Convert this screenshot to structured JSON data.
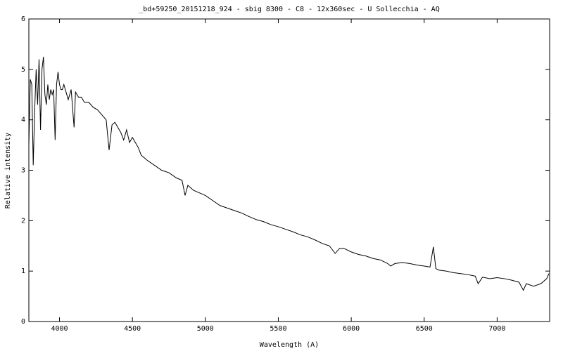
{
  "chart_data": {
    "type": "line",
    "title": "_bd+59250_20151218_924 - sbig 8300 - C8 - 12x360sec - U Sollecchia - AQ",
    "x_label": "Wavelength (A)",
    "y_label": "Relative intensity",
    "color": "#000000",
    "xlim": [
      3790,
      7360
    ],
    "xticks": [
      4000,
      4500,
      5000,
      5500,
      6000,
      6500,
      7000
    ],
    "ylim": [
      0,
      6
    ],
    "yticks": [
      0,
      1,
      2,
      3,
      4,
      5,
      6
    ],
    "x": [
      3790,
      3800,
      3810,
      3820,
      3830,
      3840,
      3850,
      3860,
      3870,
      3880,
      3890,
      3900,
      3910,
      3920,
      3930,
      3940,
      3950,
      3960,
      3970,
      3980,
      3990,
      4000,
      4010,
      4020,
      4030,
      4040,
      4060,
      4080,
      4100,
      4110,
      4130,
      4150,
      4170,
      4200,
      4230,
      4260,
      4290,
      4320,
      4340,
      4360,
      4380,
      4400,
      4420,
      4440,
      4460,
      4480,
      4500,
      4520,
      4540,
      4560,
      4600,
      4650,
      4700,
      4750,
      4800,
      4840,
      4861,
      4880,
      4920,
      4960,
      5000,
      5050,
      5100,
      5150,
      5200,
      5250,
      5300,
      5350,
      5400,
      5450,
      5500,
      5550,
      5600,
      5650,
      5700,
      5750,
      5800,
      5850,
      5890,
      5920,
      5950,
      6000,
      6050,
      6100,
      6150,
      6200,
      6250,
      6270,
      6300,
      6350,
      6400,
      6450,
      6500,
      6540,
      6563,
      6580,
      6600,
      6650,
      6700,
      6750,
      6800,
      6850,
      6870,
      6900,
      6950,
      7000,
      7050,
      7100,
      7150,
      7180,
      7200,
      7250,
      7300,
      7340,
      7355
    ],
    "values": [
      3.5,
      4.8,
      4.7,
      3.1,
      4.2,
      5.0,
      4.3,
      5.2,
      3.8,
      5.0,
      5.25,
      4.5,
      4.3,
      4.7,
      4.4,
      4.6,
      4.5,
      4.6,
      3.6,
      4.7,
      4.95,
      4.7,
      4.6,
      4.6,
      4.7,
      4.6,
      4.4,
      4.6,
      3.85,
      4.55,
      4.45,
      4.45,
      4.35,
      4.35,
      4.25,
      4.2,
      4.1,
      4.0,
      3.4,
      3.9,
      3.95,
      3.85,
      3.75,
      3.6,
      3.8,
      3.55,
      3.65,
      3.55,
      3.45,
      3.3,
      3.2,
      3.1,
      3.0,
      2.95,
      2.85,
      2.8,
      2.5,
      2.7,
      2.6,
      2.55,
      2.5,
      2.4,
      2.3,
      2.25,
      2.2,
      2.15,
      2.08,
      2.02,
      1.98,
      1.92,
      1.88,
      1.83,
      1.78,
      1.72,
      1.68,
      1.62,
      1.55,
      1.5,
      1.35,
      1.45,
      1.45,
      1.38,
      1.33,
      1.3,
      1.25,
      1.22,
      1.15,
      1.1,
      1.15,
      1.17,
      1.15,
      1.12,
      1.1,
      1.08,
      1.48,
      1.05,
      1.02,
      1.0,
      0.97,
      0.95,
      0.93,
      0.9,
      0.75,
      0.88,
      0.85,
      0.87,
      0.85,
      0.82,
      0.78,
      0.62,
      0.75,
      0.7,
      0.75,
      0.85,
      0.95
    ]
  }
}
